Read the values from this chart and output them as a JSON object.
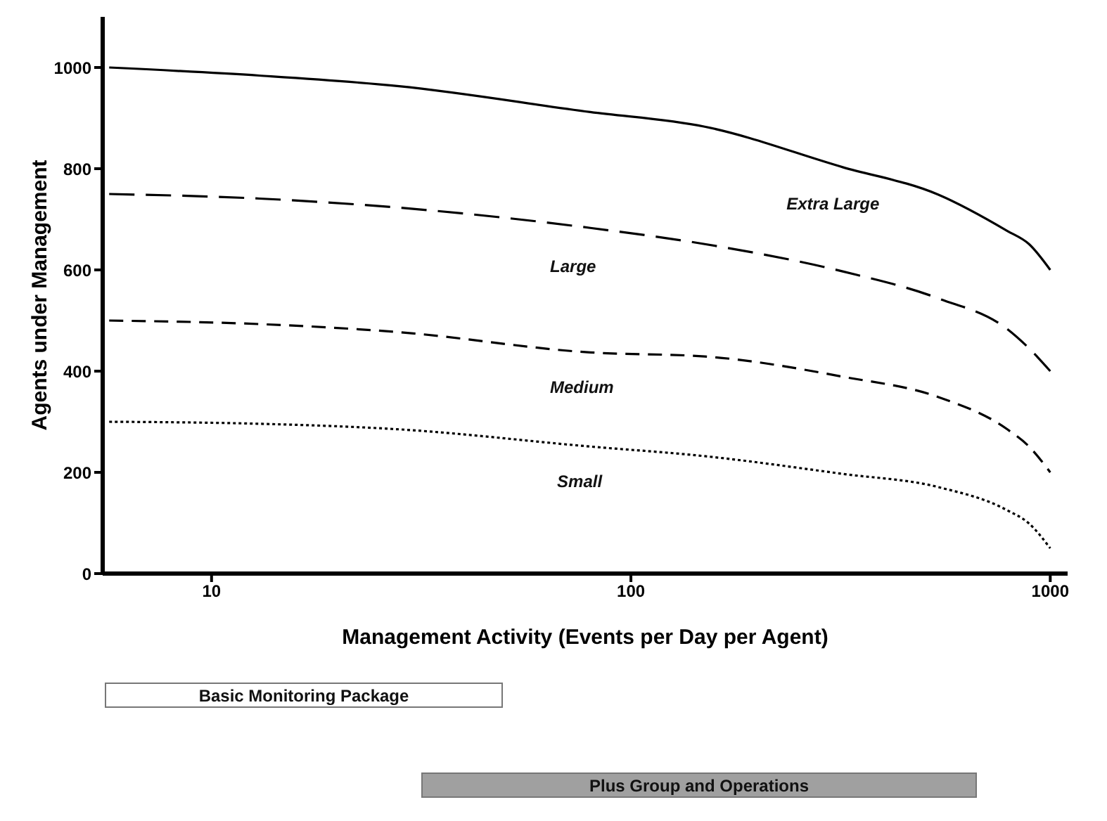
{
  "chart_data": {
    "type": "line",
    "xlabel": "Management Activity (Events per Day per Agent)",
    "ylabel": "Agents under Management",
    "x": [
      5.7,
      13,
      28,
      80,
      150,
      320,
      540,
      790,
      890,
      1000
    ],
    "series": [
      {
        "name": "Extra Large",
        "color": "#000000",
        "line_style": "solid",
        "values": [
          1000,
          984,
          963,
          912,
          883,
          803,
          749,
          677,
          651,
          600
        ]
      },
      {
        "name": "Large",
        "color": "#000000",
        "line_style": "dashed",
        "values": [
          750,
          741,
          723,
          683,
          651,
          597,
          544,
          483,
          445,
          400
        ]
      },
      {
        "name": "Medium",
        "color": "#000000",
        "line_style": "dashed",
        "values": [
          500,
          493,
          477,
          437,
          429,
          389,
          349,
          285,
          251,
          200
        ]
      },
      {
        "name": "Small",
        "color": "#000000",
        "line_style": "dotted",
        "values": [
          300,
          296,
          285,
          251,
          232,
          197,
          171,
          125,
          99,
          50
        ]
      }
    ],
    "log": "x",
    "xlim": [
      5.5,
      1100
    ],
    "xticks": [
      10,
      100,
      1000
    ],
    "ylim": [
      0,
      1100
    ],
    "yticks": [
      0,
      200,
      400,
      600,
      800,
      1000
    ],
    "marker": "none",
    "annotations": [
      "Basic Monitoring Package",
      "Plus Group and Operations"
    ]
  }
}
